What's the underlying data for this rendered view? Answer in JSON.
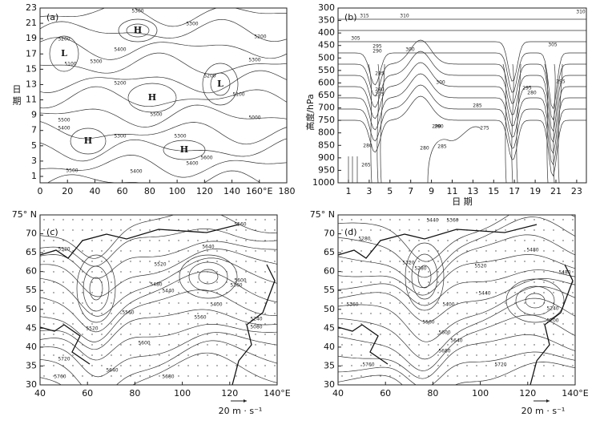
{
  "panels": [
    {
      "label": "(a)",
      "x_ticks": [
        "0",
        "20",
        "40",
        "60",
        "80",
        "100",
        "120",
        "140",
        "160°E",
        "180"
      ],
      "y_ticks": [
        "1",
        "3",
        "5",
        "7",
        "9",
        "11",
        "13",
        "15",
        "17",
        "19",
        "21",
        "23"
      ],
      "y_title": "日 期",
      "markers": [
        "H",
        "H",
        "H",
        "H",
        "L",
        "L"
      ],
      "contour_labels": [
        "5300",
        "5200",
        "5100",
        "5300",
        "5400",
        "5200",
        "5500",
        "5400",
        "5300",
        "5500",
        "5600",
        "5400",
        "5300",
        "5200",
        "5100",
        "5000",
        "5300",
        "5500",
        "5400",
        "5200",
        "5300"
      ]
    },
    {
      "label": "(b)",
      "x_ticks": [
        "1",
        "3",
        "5",
        "7",
        "9",
        "11",
        "13",
        "15",
        "17",
        "19",
        "21",
        "23"
      ],
      "y_ticks": [
        "300",
        "350",
        "400",
        "450",
        "500",
        "550",
        "600",
        "650",
        "700",
        "750",
        "800",
        "850",
        "900",
        "950",
        "1000"
      ],
      "x_title": "日 期",
      "y_title": "高度/hPa",
      "contour_labels": [
        "315",
        "310",
        "305",
        "300",
        "295",
        "290",
        "285",
        "280",
        "275",
        "300",
        "295",
        "290",
        "285",
        "280",
        "275",
        "280",
        "285",
        "290",
        "295",
        "305",
        "310",
        "280",
        "265"
      ]
    },
    {
      "label": "(c)",
      "x_ticks": [
        "40",
        "60",
        "80",
        "100",
        "120",
        "140°E"
      ],
      "y_ticks": [
        "30",
        "35",
        "40",
        "45",
        "50",
        "55",
        "60",
        "65",
        "70",
        "75° N"
      ],
      "vector_label": "20 m · s⁻¹",
      "contour_labels": [
        "5560",
        "5320",
        "5520",
        "5480",
        "5440",
        "5400",
        "5600",
        "5640",
        "5360",
        "5520",
        "5560",
        "5600",
        "5640",
        "5680",
        "5720",
        "5760",
        "5240",
        "5080",
        "5560"
      ]
    },
    {
      "label": "(d)",
      "x_ticks": [
        "40",
        "60",
        "80",
        "100",
        "120",
        "140°E"
      ],
      "y_ticks": [
        "30",
        "35",
        "40",
        "45",
        "50",
        "55",
        "60",
        "65",
        "70",
        "75° N"
      ],
      "vector_label": "20 m · s⁻¹",
      "contour_labels": [
        "5360",
        "5440",
        "5280",
        "5320",
        "5280",
        "5520",
        "5480",
        "5440",
        "5400",
        "5560",
        "5600",
        "5640",
        "5680",
        "5720",
        "5760",
        "5200",
        "5240",
        "5360",
        "5480"
      ]
    }
  ]
}
